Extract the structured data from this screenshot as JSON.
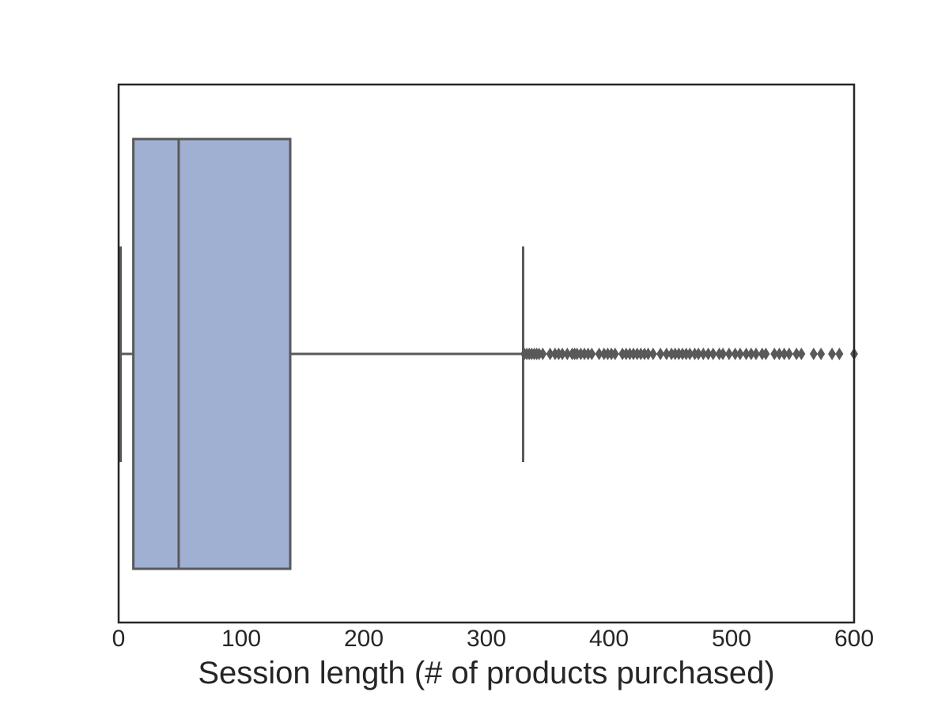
{
  "chart_data": {
    "type": "box",
    "orientation": "horizontal",
    "title": "",
    "xlabel": "Session length (# of products purchased)",
    "ylabel": "",
    "xlim": [
      0,
      600
    ],
    "xticks": [
      0,
      100,
      200,
      300,
      400,
      500,
      600
    ],
    "grid": false,
    "box": {
      "whisker_low": 1,
      "q1": 12,
      "median": 49,
      "q3": 140,
      "whisker_high": 330,
      "outliers": [
        331,
        333,
        335,
        337,
        339,
        341,
        343,
        346,
        352,
        356,
        359,
        362,
        366,
        370,
        372,
        374,
        377,
        380,
        383,
        386,
        392,
        396,
        399,
        402,
        405,
        411,
        414,
        417,
        420,
        423,
        426,
        429,
        432,
        436,
        442,
        447,
        451,
        454,
        457,
        460,
        463,
        466,
        470,
        473,
        477,
        481,
        485,
        490,
        493,
        498,
        503,
        507,
        512,
        516,
        520,
        525,
        528,
        535,
        539,
        543,
        547,
        553,
        557,
        567,
        573,
        582,
        588,
        600
      ]
    },
    "colors": {
      "box_fill": "#a0b0d2",
      "line": "#595959",
      "frame": "#262626"
    }
  }
}
